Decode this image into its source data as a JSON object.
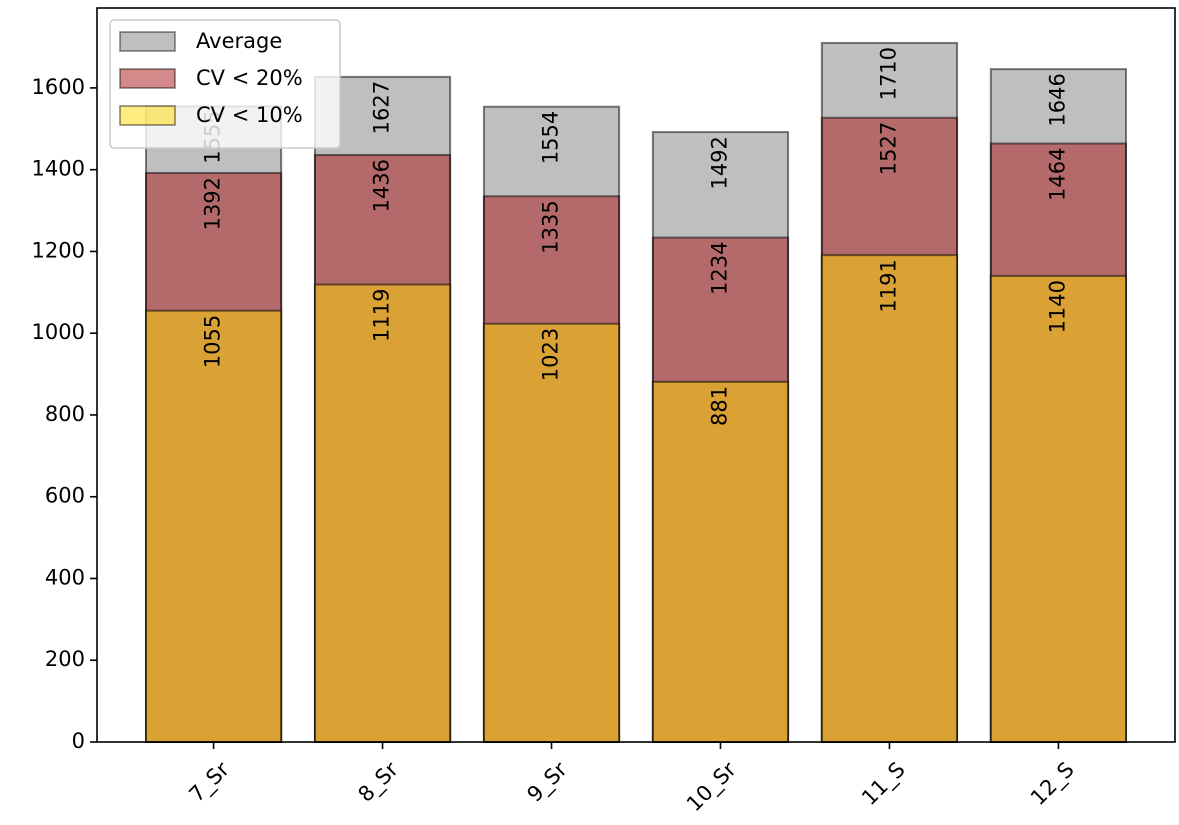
{
  "chart_data": {
    "type": "bar",
    "overlap": true,
    "categories": [
      "7_Sr",
      "8_Sr",
      "9_Sr",
      "10_Sr",
      "11_S",
      "12_S"
    ],
    "series": [
      {
        "name": "Average",
        "color": "#808080",
        "values": [
          1555,
          1627,
          1554,
          1492,
          1710,
          1646
        ]
      },
      {
        "name": "CV < 20%",
        "color": "#aa1515",
        "values": [
          1392,
          1436,
          1335,
          1234,
          1527,
          1464
        ]
      },
      {
        "name": "CV < 10%",
        "color": "#ffd700",
        "values": [
          1055,
          1119,
          1023,
          881,
          1191,
          1140
        ]
      }
    ],
    "ylim": [
      0,
      1795.5
    ],
    "yticks": [
      0,
      200,
      400,
      600,
      800,
      1000,
      1200,
      1400,
      1600
    ],
    "legend": "upper left"
  }
}
